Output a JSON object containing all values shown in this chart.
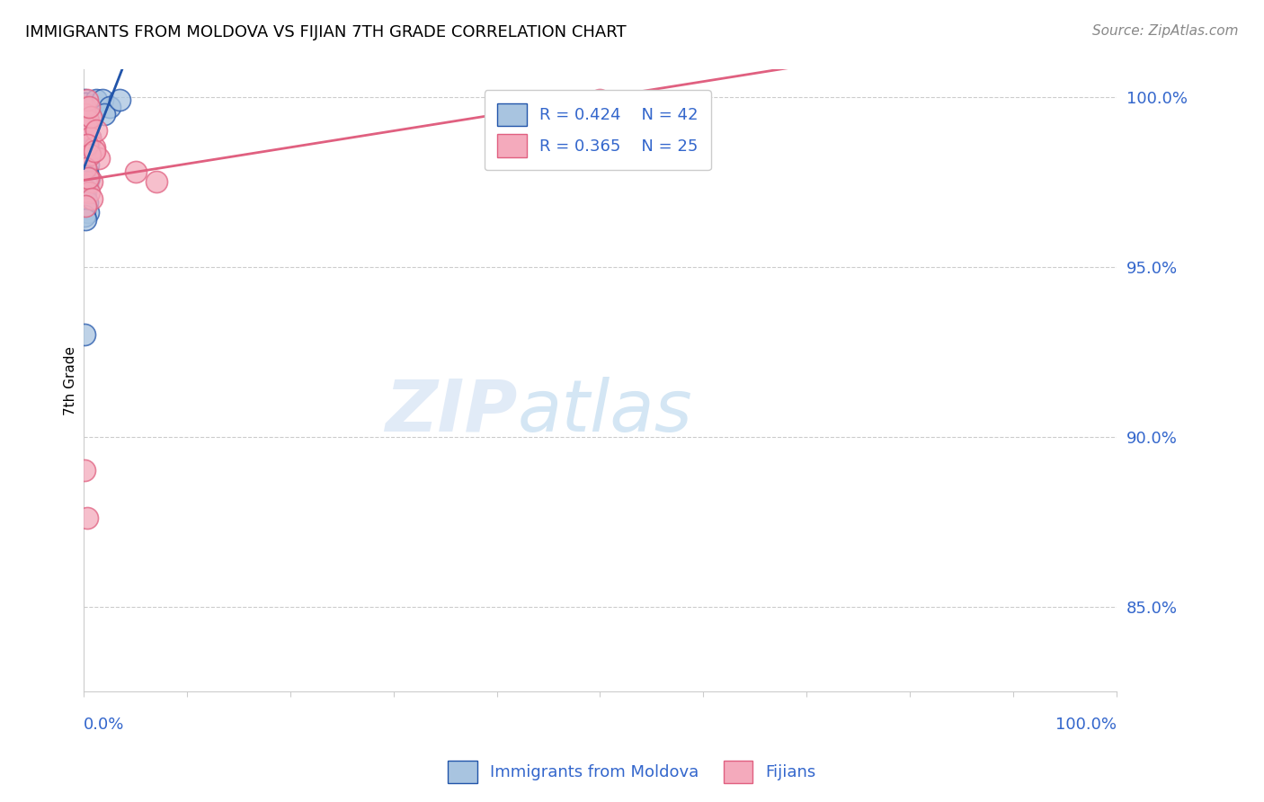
{
  "title": "IMMIGRANTS FROM MOLDOVA VS FIJIAN 7TH GRADE CORRELATION CHART",
  "source": "Source: ZipAtlas.com",
  "legend_label1": "Immigrants from Moldova",
  "legend_label2": "Fijians",
  "R1": 0.424,
  "N1": 42,
  "R2": 0.365,
  "N2": 25,
  "color_blue_fill": "#A8C4E0",
  "color_blue_edge": "#2255AA",
  "color_pink_fill": "#F4AABC",
  "color_pink_edge": "#E06080",
  "color_blue_line": "#2255AA",
  "color_pink_line": "#E06080",
  "color_axis_label": "#3366CC",
  "color_grid": "#CCCCCC",
  "blue_points_x": [
    0.001,
    0.002,
    0.003,
    0.001,
    0.002,
    0.004,
    0.003,
    0.005,
    0.002,
    0.001,
    0.002,
    0.003,
    0.001,
    0.004,
    0.002,
    0.006,
    0.003,
    0.002,
    0.001,
    0.004,
    0.002,
    0.003,
    0.001,
    0.005,
    0.002,
    0.003,
    0.012,
    0.018,
    0.025,
    0.02,
    0.001,
    0.002,
    0.001,
    0.002,
    0.003,
    0.001,
    0.002,
    0.004,
    0.001,
    0.035,
    0.001,
    0.002
  ],
  "blue_points_y": [
    0.999,
    0.998,
    0.997,
    0.995,
    0.993,
    0.991,
    0.989,
    0.987,
    0.985,
    0.983,
    0.998,
    0.996,
    0.994,
    0.992,
    0.99,
    0.988,
    0.986,
    0.984,
    0.982,
    0.98,
    0.979,
    0.978,
    0.977,
    0.976,
    0.975,
    0.974,
    0.999,
    0.999,
    0.997,
    0.995,
    0.973,
    0.972,
    0.971,
    0.97,
    0.969,
    0.968,
    0.967,
    0.966,
    0.93,
    0.999,
    0.965,
    0.964
  ],
  "pink_points_x": [
    0.001,
    0.002,
    0.004,
    0.003,
    0.006,
    0.01,
    0.015,
    0.05,
    0.008,
    0.005,
    0.003,
    0.007,
    0.012,
    0.003,
    0.006,
    0.002,
    0.004,
    0.008,
    0.07,
    0.5,
    0.001,
    0.003,
    0.002,
    0.01,
    0.005
  ],
  "pink_points_y": [
    0.997,
    0.995,
    0.993,
    0.991,
    0.988,
    0.985,
    0.982,
    0.978,
    0.975,
    0.972,
    0.999,
    0.994,
    0.99,
    0.986,
    0.983,
    0.979,
    0.976,
    0.97,
    0.975,
    0.999,
    0.89,
    0.876,
    0.968,
    0.984,
    0.997
  ],
  "xlim": [
    0.0,
    1.0
  ],
  "ylim": [
    0.825,
    1.008
  ],
  "yticks": [
    0.85,
    0.9,
    0.95,
    1.0
  ],
  "ytick_labels": [
    "85.0%",
    "90.0%",
    "95.0%",
    "100.0%"
  ]
}
